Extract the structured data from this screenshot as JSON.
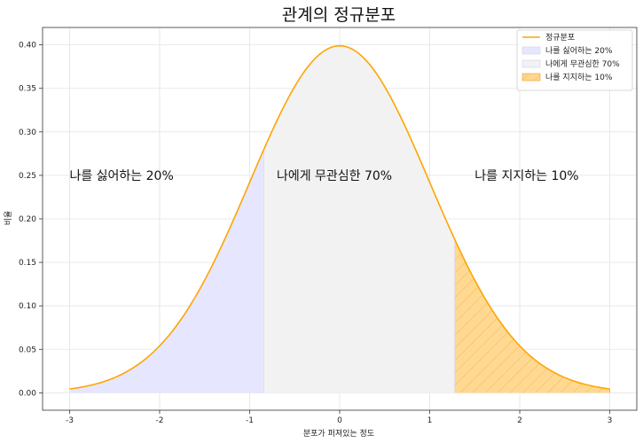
{
  "chart_data": {
    "type": "area",
    "title": "관계의 정규분포",
    "xlabel": "분포가 퍼져있는 정도",
    "ylabel": "비율",
    "xlim": [
      -3.3,
      3.3
    ],
    "ylim": [
      -0.02,
      0.42
    ],
    "x_ticks": [
      -3,
      -2,
      -1,
      0,
      1,
      2,
      3
    ],
    "x_tick_labels": [
      "-3",
      "-2",
      "-1",
      "0",
      "1",
      "2",
      "3"
    ],
    "y_ticks": [
      0.0,
      0.05,
      0.1,
      0.15,
      0.2,
      0.25,
      0.3,
      0.35,
      0.4
    ],
    "y_tick_labels": [
      "0.00",
      "0.05",
      "0.10",
      "0.15",
      "0.20",
      "0.25",
      "0.30",
      "0.35",
      "0.40"
    ],
    "grid": true,
    "legend_position": "top-right",
    "series": [
      {
        "name": "정규분포",
        "kind": "line",
        "color": "#ffa500",
        "x": [
          -3.0,
          -2.75,
          -2.5,
          -2.25,
          -2.0,
          -1.75,
          -1.5,
          -1.25,
          -1.0,
          -0.75,
          -0.5,
          -0.25,
          0.0,
          0.25,
          0.5,
          0.75,
          1.0,
          1.25,
          1.5,
          1.75,
          2.0,
          2.25,
          2.5,
          2.75,
          3.0
        ],
        "y": [
          0.0044,
          0.0091,
          0.0175,
          0.0317,
          0.054,
          0.0863,
          0.1295,
          0.1826,
          0.242,
          0.3011,
          0.3521,
          0.3867,
          0.3989,
          0.3867,
          0.3521,
          0.3011,
          0.242,
          0.1826,
          0.1295,
          0.0863,
          0.054,
          0.0317,
          0.0175,
          0.0091,
          0.0044
        ]
      },
      {
        "name": "나를 싫어하는 20%",
        "kind": "fill",
        "color": "#e6e6ff",
        "x_range": [
          -3.0,
          -0.84
        ]
      },
      {
        "name": "나에게 무관심한 70%",
        "kind": "fill",
        "color": "#f2f2f2",
        "x_range": [
          -0.84,
          1.28
        ]
      },
      {
        "name": "나를 지지하는 10%",
        "kind": "fill_hatched",
        "color": "#ffd78c",
        "x_range": [
          1.28,
          3.0
        ]
      }
    ],
    "annotations": [
      {
        "text": "나를 싫어하는 20%",
        "x": -3.0,
        "y": 0.25
      },
      {
        "text": "나에게 무관심한 70%",
        "x": -0.7,
        "y": 0.25
      },
      {
        "text": "나를 지지하는 10%",
        "x": 1.5,
        "y": 0.25
      }
    ]
  }
}
